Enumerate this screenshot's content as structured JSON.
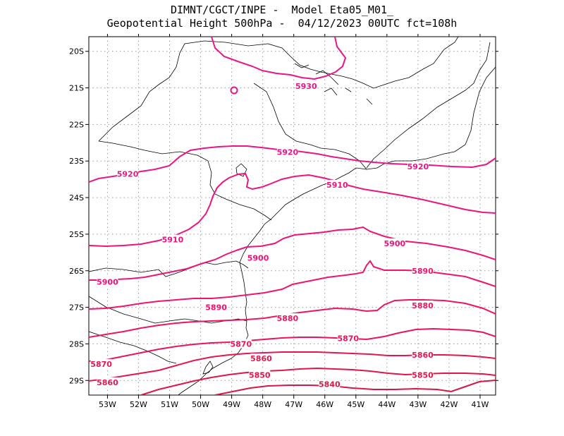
{
  "header": {
    "line1": "DIMNT/CGCT/INPE -  Model Eta05_M01_",
    "line2": "Geopotential Height 500hPa -  04/12/2023 00UTC fct=108h"
  },
  "chart_data": {
    "type": "contour-map",
    "title": "Geopotential Height 500hPa",
    "model": "Eta05_M01_",
    "source": "DIMNT/CGCT/INPE",
    "init": "04/12/2023 00UTC",
    "forecast": "fct=108h",
    "x_ticks": [
      "53W",
      "52W",
      "51W",
      "50W",
      "49W",
      "48W",
      "47W",
      "46W",
      "45W",
      "44W",
      "43W",
      "42W",
      "41W"
    ],
    "y_ticks": [
      "20S",
      "21S",
      "22S",
      "23S",
      "24S",
      "25S",
      "26S",
      "27S",
      "28S",
      "29S"
    ],
    "xlim": [
      -53.6,
      -40.5
    ],
    "ylim": [
      -29.4,
      -19.6
    ],
    "contour_labels": [
      {
        "text": "5930",
        "lon": -46.6,
        "lat": -20.95
      },
      {
        "text": "5920",
        "lon": -52.35,
        "lat": -23.35
      },
      {
        "text": "5920",
        "lon": -47.2,
        "lat": -22.75
      },
      {
        "text": "5920",
        "lon": -43.0,
        "lat": -23.15
      },
      {
        "text": "5910",
        "lon": -50.9,
        "lat": -25.15
      },
      {
        "text": "5910",
        "lon": -45.6,
        "lat": -23.65
      },
      {
        "text": "5900",
        "lon": -53.0,
        "lat": -26.3
      },
      {
        "text": "5900",
        "lon": -48.15,
        "lat": -25.65
      },
      {
        "text": "5900",
        "lon": -43.75,
        "lat": -25.25
      },
      {
        "text": "5890",
        "lon": -49.5,
        "lat": -27.0
      },
      {
        "text": "5890",
        "lon": -42.85,
        "lat": -26.0
      },
      {
        "text": "5880",
        "lon": -47.2,
        "lat": -27.3
      },
      {
        "text": "5880",
        "lon": -42.85,
        "lat": -26.95
      },
      {
        "text": "5870",
        "lon": -48.7,
        "lat": -28.0
      },
      {
        "text": "5870",
        "lon": -53.2,
        "lat": -28.55
      },
      {
        "text": "5870",
        "lon": -45.25,
        "lat": -27.85
      },
      {
        "text": "5860",
        "lon": -48.05,
        "lat": -28.4
      },
      {
        "text": "5860",
        "lon": -53.0,
        "lat": -29.05
      },
      {
        "text": "5860",
        "lon": -42.85,
        "lat": -28.3
      },
      {
        "text": "5850",
        "lon": -48.1,
        "lat": -28.85
      },
      {
        "text": "5850",
        "lon": -42.85,
        "lat": -28.85
      },
      {
        "text": "5840",
        "lon": -45.85,
        "lat": -29.1
      }
    ],
    "colors": {
      "5930": "#e8168a",
      "5920": "#e8168a",
      "5910": "#ec1580",
      "5900": "#ee1476",
      "5890": "#f0146a",
      "5880": "#ee145e",
      "5870": "#ea1556",
      "5860": "#e41650",
      "5850": "#de174a",
      "5840": "#d81844"
    }
  }
}
